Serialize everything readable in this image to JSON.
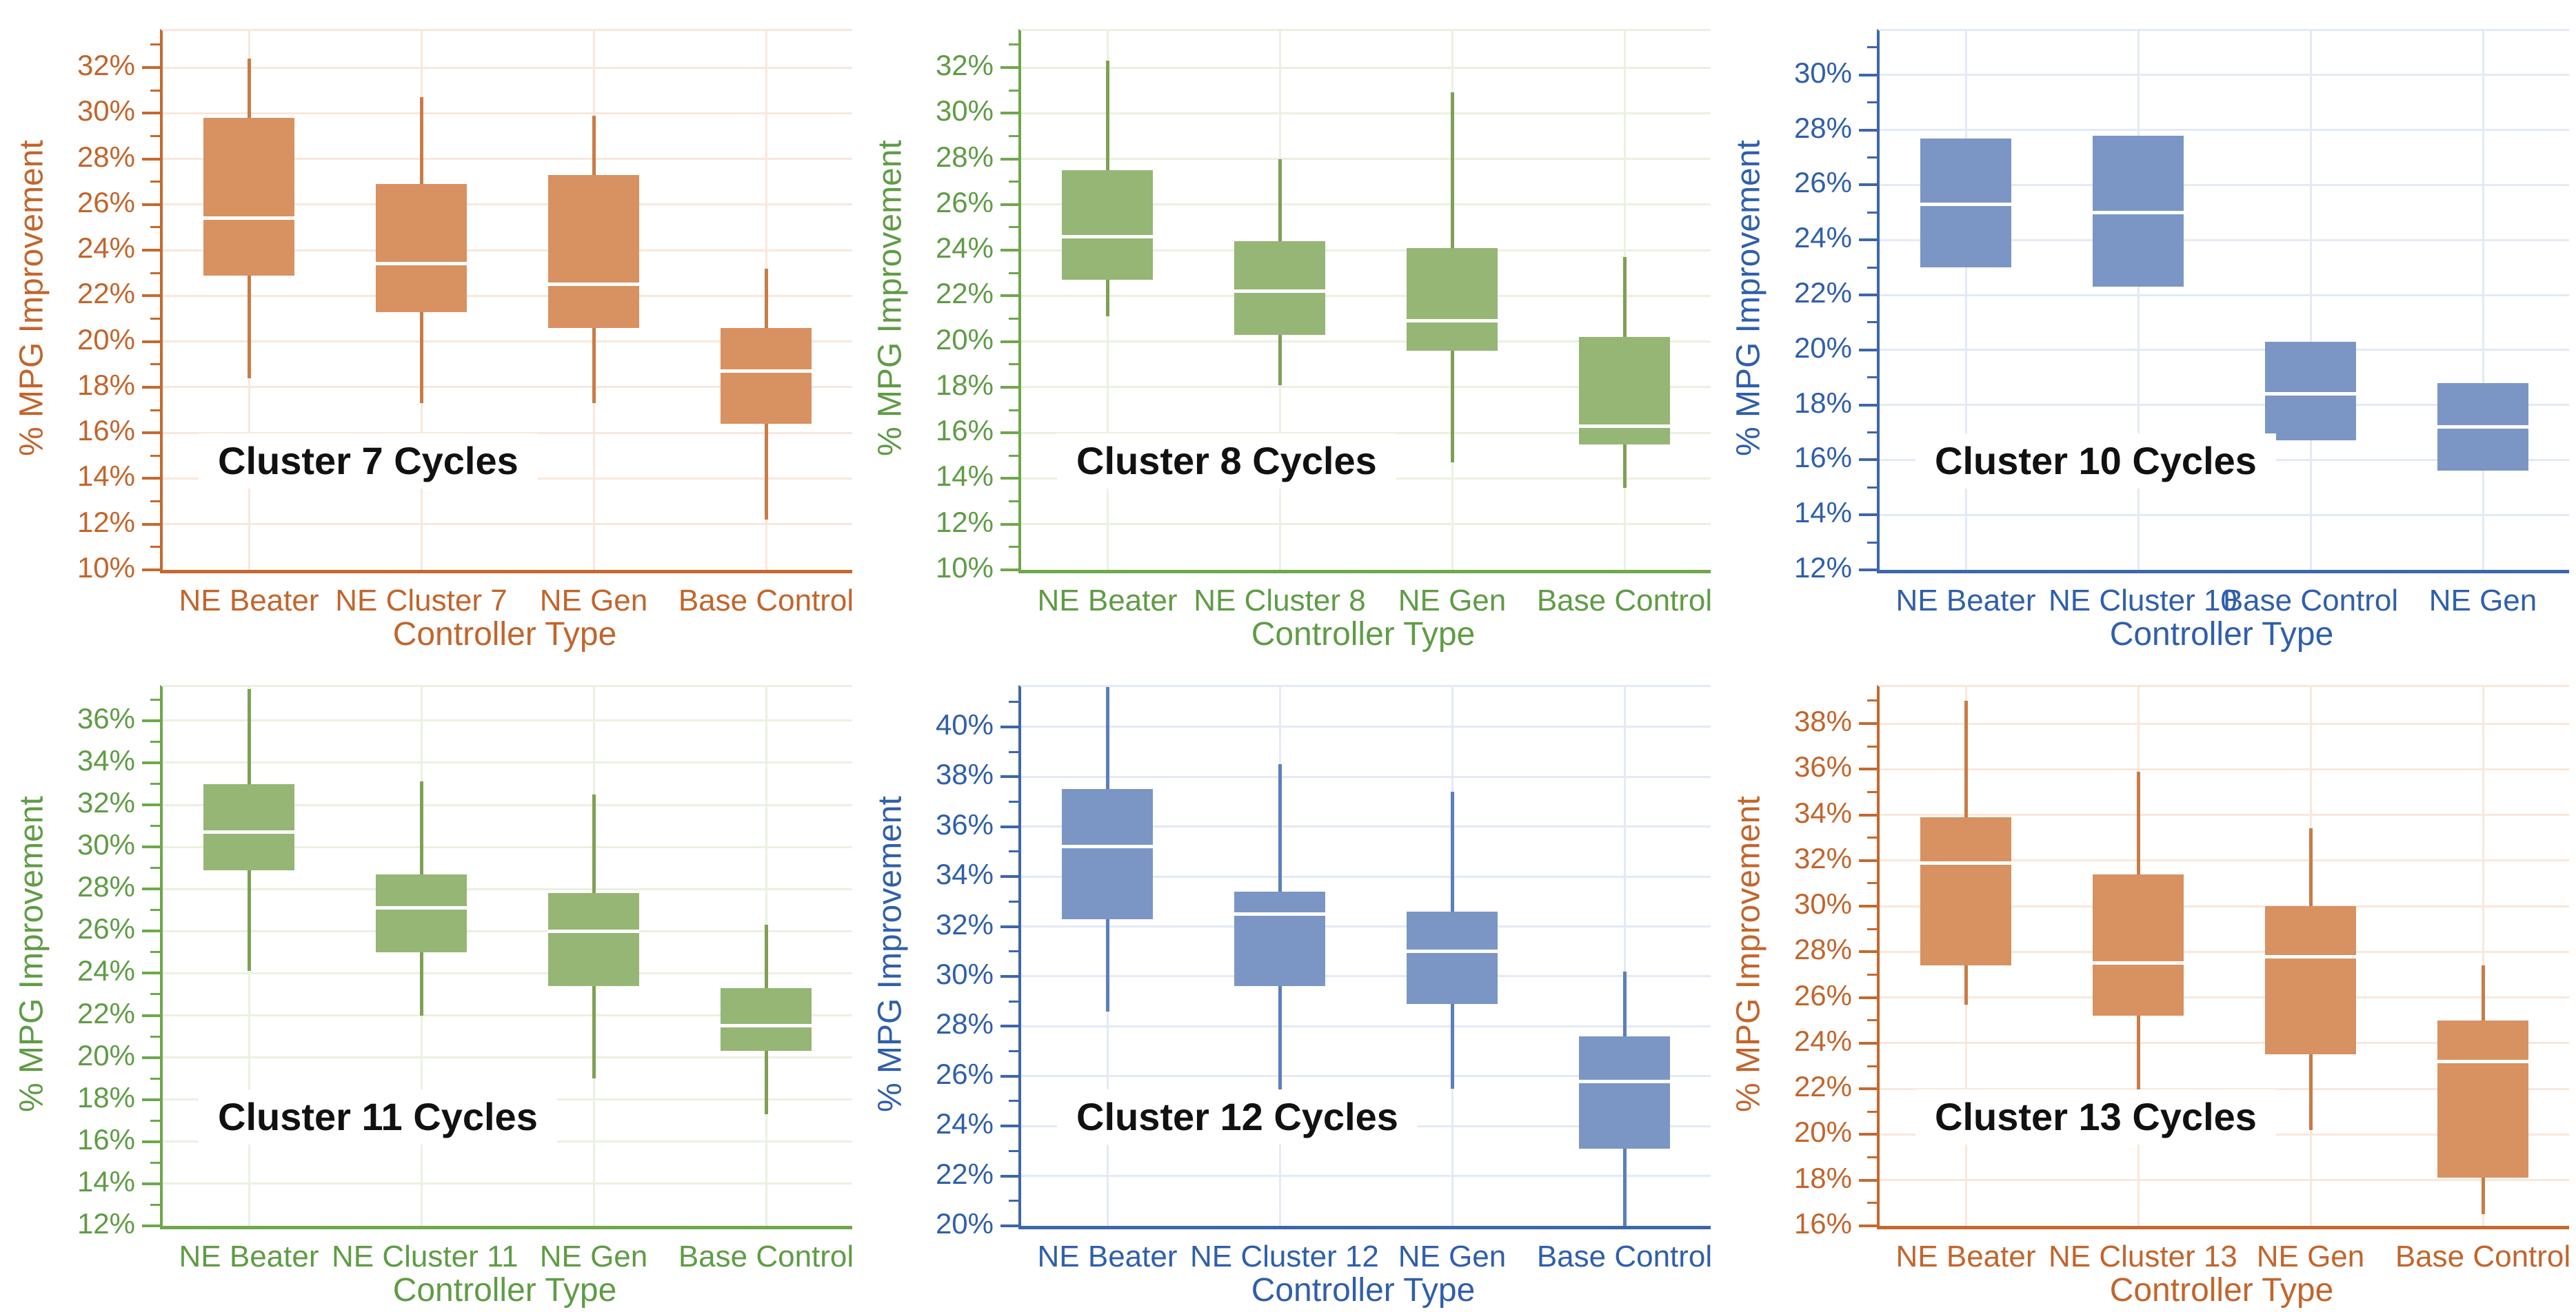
{
  "figure": {
    "x_axis_label": "Controller Type",
    "y_axis_label": "% MPG Improvement"
  },
  "themes": {
    "orange": {
      "text": "#c2652c",
      "axis": "#c4692f",
      "fill": "#d89160",
      "whisker": "#c97c46",
      "grid": "#f9e7db"
    },
    "green": {
      "text": "#5f9c45",
      "axis": "#6fa74c",
      "fill": "#95b674",
      "whisker": "#7fa055",
      "grid": "#eaf1e1"
    },
    "blue": {
      "text": "#2f5fab",
      "axis": "#3d66ac",
      "fill": "#7b96c5",
      "whisker": "#5c7fbc",
      "grid": "#e3eaf6"
    }
  },
  "chart_data": [
    {
      "type": "box",
      "title": "Cluster 7 Cycles",
      "theme": "orange",
      "xlabel": "Controller Type",
      "ylabel": "% MPG Improvement",
      "y_axis": {
        "min": 10,
        "max_label": 32,
        "axis_top": 33.6,
        "step": 2,
        "unit": "%"
      },
      "y_tick_labels": [
        "10%",
        "12%",
        "14%",
        "16%",
        "18%",
        "20%",
        "22%",
        "24%",
        "26%",
        "28%",
        "30%",
        "32%"
      ],
      "categories": [
        "NE Beater",
        "NE Cluster 7",
        "NE Gen",
        "Base Control"
      ],
      "series": [
        {
          "label": "NE Beater",
          "low": 18.4,
          "q1": 22.9,
          "median": 25.4,
          "q3": 29.8,
          "high": 32.4
        },
        {
          "label": "NE Cluster 7",
          "low": 17.3,
          "q1": 21.3,
          "median": 23.4,
          "q3": 26.9,
          "high": 30.7
        },
        {
          "label": "NE Gen",
          "low": 17.3,
          "q1": 20.6,
          "median": 22.5,
          "q3": 27.3,
          "high": 29.9
        },
        {
          "label": "Base Control",
          "low": 12.2,
          "q1": 16.4,
          "median": 18.7,
          "q3": 20.6,
          "high": 23.2
        }
      ]
    },
    {
      "type": "box",
      "title": "Cluster 8 Cycles",
      "theme": "green",
      "xlabel": "Controller Type",
      "ylabel": "% MPG Improvement",
      "y_axis": {
        "min": 10,
        "max_label": 32,
        "axis_top": 33.6,
        "step": 2,
        "unit": "%"
      },
      "y_tick_labels": [
        "10%",
        "12%",
        "14%",
        "16%",
        "18%",
        "20%",
        "22%",
        "24%",
        "26%",
        "28%",
        "30%",
        "32%"
      ],
      "categories": [
        "NE Beater",
        "NE Cluster 8",
        "NE Gen",
        "Base Control"
      ],
      "series": [
        {
          "label": "NE Beater",
          "low": 21.1,
          "q1": 22.7,
          "median": 24.6,
          "q3": 27.5,
          "high": 32.3
        },
        {
          "label": "NE Cluster 8",
          "low": 18.1,
          "q1": 20.3,
          "median": 22.2,
          "q3": 24.4,
          "high": 28.0
        },
        {
          "label": "NE Gen",
          "low": 14.7,
          "q1": 19.6,
          "median": 20.9,
          "q3": 24.1,
          "high": 30.9
        },
        {
          "label": "Base Control",
          "low": 13.6,
          "q1": 15.5,
          "median": 16.3,
          "q3": 20.2,
          "high": 23.7
        }
      ]
    },
    {
      "type": "box",
      "title": "Cluster 10 Cycles",
      "theme": "blue",
      "xlabel": "Controller Type",
      "ylabel": "% MPG Improvement",
      "y_axis": {
        "min": 12,
        "max_label": 30,
        "axis_top": 31.6,
        "step": 2,
        "unit": "%"
      },
      "y_tick_labels": [
        "12%",
        "14%",
        "16%",
        "18%",
        "20%",
        "22%",
        "24%",
        "26%",
        "28%",
        "30%"
      ],
      "categories": [
        "NE Beater",
        "NE Cluster 10",
        "Base Control",
        "NE Gen"
      ],
      "series": [
        {
          "label": "NE Beater",
          "low": null,
          "q1": 23.0,
          "median": 25.3,
          "q3": 27.7,
          "high": null
        },
        {
          "label": "NE Cluster 10",
          "low": null,
          "q1": 22.3,
          "median": 25.0,
          "q3": 27.8,
          "high": null
        },
        {
          "label": "Base Control",
          "low": null,
          "q1": 16.7,
          "median": 18.4,
          "q3": 20.3,
          "high": null
        },
        {
          "label": "NE Gen",
          "low": null,
          "q1": 15.6,
          "median": 17.2,
          "q3": 18.8,
          "high": null
        }
      ]
    },
    {
      "type": "box",
      "title": "Cluster 11 Cycles",
      "theme": "green",
      "xlabel": "Controller Type",
      "ylabel": "% MPG Improvement",
      "y_axis": {
        "min": 12,
        "max_label": 36,
        "axis_top": 37.6,
        "step": 2,
        "unit": "%"
      },
      "y_tick_labels": [
        "12%",
        "14%",
        "16%",
        "18%",
        "20%",
        "22%",
        "24%",
        "26%",
        "28%",
        "30%",
        "32%",
        "34%",
        "36%"
      ],
      "categories": [
        "NE Beater",
        "NE Cluster 11",
        "NE Gen",
        "Base Control"
      ],
      "series": [
        {
          "label": "NE Beater",
          "low": 24.1,
          "q1": 28.9,
          "median": 30.7,
          "q3": 33.0,
          "high": 37.5
        },
        {
          "label": "NE Cluster 11",
          "low": 22.0,
          "q1": 25.0,
          "median": 27.1,
          "q3": 28.7,
          "high": 33.1
        },
        {
          "label": "NE Gen",
          "low": 19.0,
          "q1": 23.4,
          "median": 26.0,
          "q3": 27.8,
          "high": 32.5
        },
        {
          "label": "Base Control",
          "low": 17.3,
          "q1": 20.3,
          "median": 21.5,
          "q3": 23.3,
          "high": 26.3
        }
      ]
    },
    {
      "type": "box",
      "title": "Cluster 12 Cycles",
      "theme": "blue",
      "xlabel": "Controller Type",
      "ylabel": "% MPG Improvement",
      "y_axis": {
        "min": 20,
        "max_label": 40,
        "axis_top": 41.6,
        "step": 2,
        "unit": "%"
      },
      "y_tick_labels": [
        "20%",
        "22%",
        "24%",
        "26%",
        "28%",
        "30%",
        "32%",
        "34%",
        "36%",
        "38%",
        "40%"
      ],
      "categories": [
        "NE Beater",
        "NE Cluster 12",
        "NE Gen",
        "Base Control"
      ],
      "series": [
        {
          "label": "NE Beater",
          "low": 28.6,
          "q1": 32.3,
          "median": 35.2,
          "q3": 37.5,
          "high": 41.6
        },
        {
          "label": "NE Cluster 12",
          "low": 24.8,
          "q1": 29.6,
          "median": 32.5,
          "q3": 33.4,
          "high": 38.5
        },
        {
          "label": "NE Gen",
          "low": 25.5,
          "q1": 28.9,
          "median": 31.0,
          "q3": 32.6,
          "high": 37.4
        },
        {
          "label": "Base Control",
          "low": 20.0,
          "q1": 23.1,
          "median": 25.8,
          "q3": 27.6,
          "high": 30.2
        }
      ]
    },
    {
      "type": "box",
      "title": "Cluster 13 Cycles",
      "theme": "orange",
      "xlabel": "Controller Type",
      "ylabel": "% MPG Improvement",
      "y_axis": {
        "min": 16,
        "max_label": 38,
        "axis_top": 39.6,
        "step": 2,
        "unit": "%"
      },
      "y_tick_labels": [
        "16%",
        "18%",
        "20%",
        "22%",
        "24%",
        "26%",
        "28%",
        "30%",
        "32%",
        "34%",
        "36%",
        "38%"
      ],
      "categories": [
        "NE Beater",
        "NE Cluster 13",
        "NE Gen",
        "Base Control"
      ],
      "series": [
        {
          "label": "NE Beater",
          "low": 25.7,
          "q1": 27.4,
          "median": 31.9,
          "q3": 33.9,
          "high": 39.0
        },
        {
          "label": "NE Cluster 13",
          "low": 21.7,
          "q1": 25.2,
          "median": 27.5,
          "q3": 31.4,
          "high": 35.9
        },
        {
          "label": "NE Gen",
          "low": 20.2,
          "q1": 23.5,
          "median": 27.8,
          "q3": 30.0,
          "high": 33.4
        },
        {
          "label": "Base Control",
          "low": 16.5,
          "q1": 18.1,
          "median": 23.2,
          "q3": 25.0,
          "high": 27.4
        }
      ]
    }
  ]
}
